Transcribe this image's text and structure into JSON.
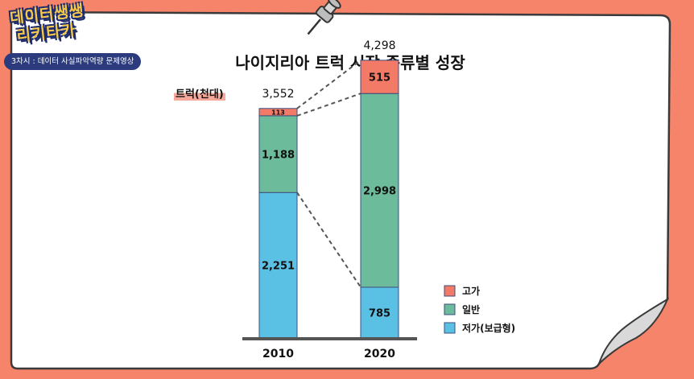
{
  "logo": {
    "line1": "데이터쌩쌩",
    "line2": "리키타카"
  },
  "badge": "3차시 : 데이터 사실파악역량 문제영상",
  "chart_data": {
    "type": "bar",
    "stacked": true,
    "title": "나이지리아 트럭 시장 종류별 성장",
    "ylabel": "트럭(천대)",
    "categories": [
      "2010",
      "2020"
    ],
    "totals": [
      "3,552",
      "4,298"
    ],
    "series": [
      {
        "name": "저가(보급형)",
        "values": [
          2251,
          785
        ],
        "labels": [
          "2,251",
          "785"
        ],
        "color": "#5bc1e4"
      },
      {
        "name": "일반",
        "values": [
          1188,
          2998
        ],
        "labels": [
          "1,188",
          "2,998"
        ],
        "color": "#6cbb9a"
      },
      {
        "name": "고가",
        "values": [
          113,
          515
        ],
        "labels": [
          "113",
          "515"
        ],
        "color": "#f27a66"
      }
    ],
    "legend_position": "right",
    "connectors": "dashed"
  },
  "colors": {
    "background": "#f5846a",
    "card": "#ffffff",
    "card_border": "#3a3a3a",
    "baseline": "#555555",
    "badge": "#2b3b7d"
  },
  "icons": {
    "pin": "pushpin-icon"
  }
}
